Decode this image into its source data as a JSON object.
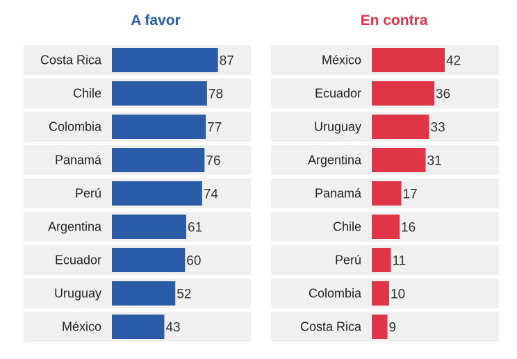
{
  "chart_data": [
    {
      "type": "bar",
      "orientation": "horizontal",
      "title": "A favor",
      "color": "#2a5ca8",
      "categories": [
        "Costa Rica",
        "Chile",
        "Colombia",
        "Panamá",
        "Perú",
        "Argentina",
        "Ecuador",
        "Uruguay",
        "México"
      ],
      "values": [
        87,
        78,
        77,
        76,
        74,
        61,
        60,
        52,
        43
      ],
      "data_labels": [
        "87",
        "78",
        "77",
        "76",
        "74",
        "61",
        "60",
        "52",
        "43"
      ],
      "grid": false
    },
    {
      "type": "bar",
      "orientation": "horizontal",
      "title": "En contra",
      "color": "#e03546",
      "categories": [
        "México",
        "Ecuador",
        "Uruguay",
        "Argentina",
        "Panamá",
        "Chile",
        "Perú",
        "Colombia",
        "Costa Rica"
      ],
      "values": [
        42,
        36,
        33,
        31,
        17,
        16,
        11,
        10,
        9
      ],
      "data_labels": [
        "42",
        "36",
        "33",
        "31",
        "17",
        "16",
        "11",
        "10",
        "9"
      ],
      "grid": false
    }
  ],
  "colors": {
    "row_background": "#f0f0f0",
    "label_text": "#222222",
    "value_text": "#333333"
  }
}
